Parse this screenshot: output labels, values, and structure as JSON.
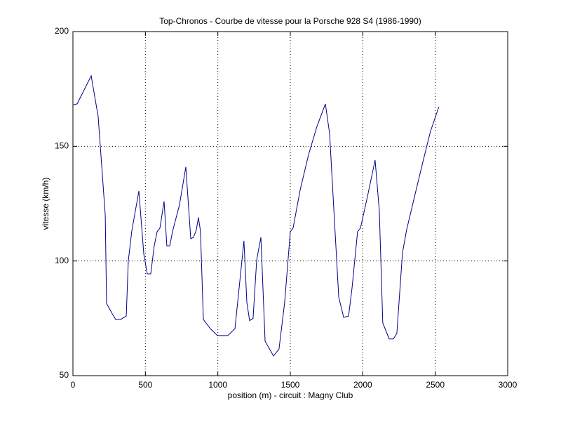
{
  "chart_data": {
    "type": "line",
    "title": "Top-Chronos - Courbe de vitesse pour la Porsche 928 S4 (1986-1990)",
    "x_label": "position (m) - circuit : Magny Club",
    "y_label": "vitesse (km/h)",
    "x": [
      0,
      29,
      126,
      174,
      223,
      232,
      271,
      295,
      329,
      368,
      382,
      406,
      455,
      489,
      513,
      537,
      561,
      581,
      600,
      629,
      648,
      668,
      687,
      735,
      779,
      813,
      832,
      851,
      866,
      880,
      900,
      948,
      997,
      1069,
      1118,
      1180,
      1200,
      1219,
      1243,
      1268,
      1297,
      1326,
      1384,
      1422,
      1461,
      1500,
      1519,
      1568,
      1626,
      1684,
      1742,
      1771,
      1834,
      1868,
      1902,
      1926,
      1964,
      1984,
      2032,
      2085,
      2114,
      2138,
      2182,
      2211,
      2235,
      2274,
      2303,
      2351,
      2419,
      2467,
      2525
    ],
    "series": [
      {
        "name": "vitesse",
        "color": "#00008b",
        "values": [
          168,
          168.5,
          180.7,
          163,
          120,
          81.5,
          77,
          74.5,
          74.5,
          76,
          100,
          113,
          130.5,
          103,
          94.4,
          94.4,
          106.6,
          112.8,
          114.3,
          126,
          106.6,
          106.6,
          112.8,
          124.4,
          141,
          109.7,
          110.3,
          113.4,
          119,
          113,
          74.5,
          70.5,
          67.5,
          67.5,
          70.5,
          108.8,
          82,
          74,
          75,
          100.5,
          110.3,
          65,
          58.6,
          61.6,
          82,
          112.8,
          114.3,
          131,
          146.4,
          158.7,
          168.5,
          155.6,
          84.3,
          75.4,
          76,
          88.3,
          112.8,
          114.3,
          128,
          144,
          122,
          73,
          66,
          66,
          68.4,
          103.6,
          113.7,
          126.5,
          144.3,
          156.5,
          167.2
        ]
      }
    ],
    "xlim": [
      0,
      3000
    ],
    "xticks": [
      0,
      500,
      1000,
      1500,
      2000,
      2500,
      3000
    ],
    "ylim": [
      50,
      200
    ],
    "yticks": [
      50,
      100,
      150,
      200
    ],
    "grid": true
  }
}
